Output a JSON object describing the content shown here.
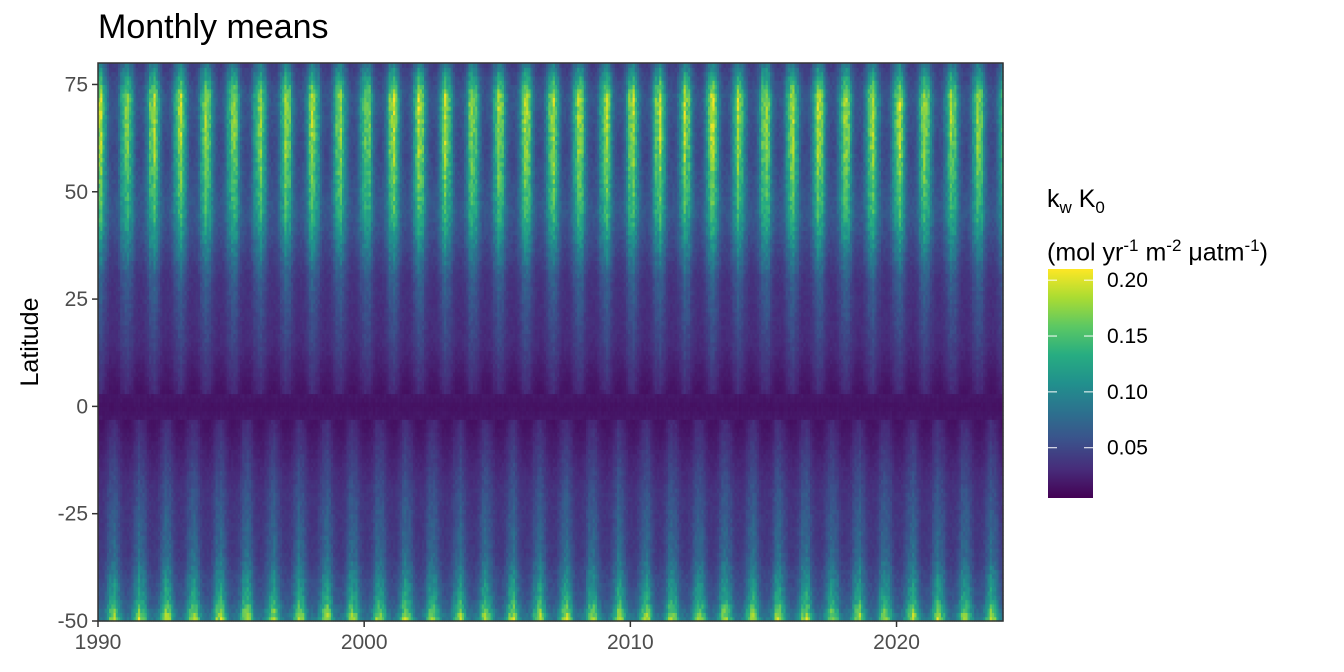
{
  "chart_data": {
    "type": "heatmap",
    "title": "Monthly means",
    "xlabel": "",
    "ylabel": "Latitude",
    "x_range": [
      1990,
      2024
    ],
    "y_range": [
      -50,
      80
    ],
    "x_ticks": [
      1990,
      2000,
      2010,
      2020
    ],
    "y_ticks": [
      -50,
      -25,
      0,
      25,
      50,
      75
    ],
    "x_tick_labels": [
      "1990",
      "2000",
      "2010",
      "2020"
    ],
    "y_tick_labels": [
      "-50",
      "-25",
      "0",
      "25",
      "50",
      "75"
    ],
    "grid": false,
    "colorscale": "viridis",
    "color_range": [
      0.005,
      0.21
    ],
    "legend": {
      "placement": "right",
      "title_line1": {
        "k": "k",
        "k_sub": "w",
        "K": " K",
        "K_sub": "0"
      },
      "title_line2": {
        "p1": "(mol yr",
        "s1": "-1",
        "p2": " m",
        "s2": "-2",
        "p3": " μatm",
        "s3": "-1",
        "p4": ")"
      },
      "breaks": [
        0.05,
        0.1,
        0.15,
        0.2
      ],
      "break_labels": [
        "0.05",
        "0.10",
        "0.15",
        "0.20"
      ]
    },
    "seasonal_field": {
      "description_values_by_latitude": [
        {
          "lat": -50,
          "min": 0.09,
          "max": 0.19
        },
        {
          "lat": -45,
          "min": 0.06,
          "max": 0.13
        },
        {
          "lat": -35,
          "min": 0.04,
          "max": 0.08
        },
        {
          "lat": -20,
          "min": 0.035,
          "max": 0.06
        },
        {
          "lat": 0,
          "min": 0.01,
          "max": 0.025
        },
        {
          "lat": 15,
          "min": 0.03,
          "max": 0.05
        },
        {
          "lat": 30,
          "min": 0.035,
          "max": 0.07
        },
        {
          "lat": 45,
          "min": 0.06,
          "max": 0.14
        },
        {
          "lat": 60,
          "min": 0.05,
          "max": 0.17
        },
        {
          "lat": 72,
          "min": 0.06,
          "max": 0.18
        },
        {
          "lat": 80,
          "min": 0.04,
          "max": 0.09
        }
      ]
    }
  }
}
